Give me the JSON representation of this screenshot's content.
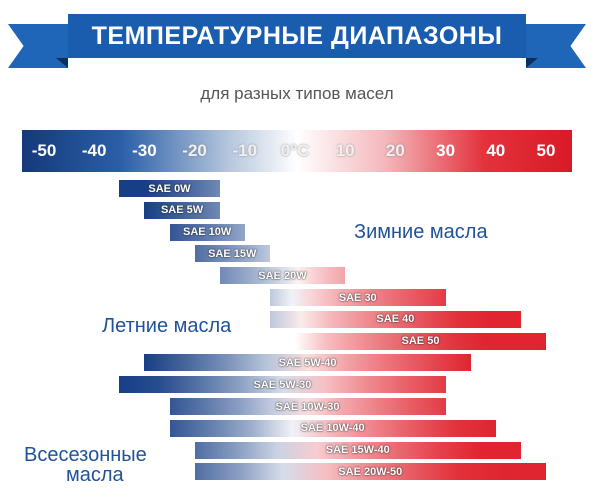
{
  "header": {
    "title": "ТЕМПЕРАТУРНЫЕ ДИАПАЗОНЫ",
    "subtitle": "для разных типов масел"
  },
  "colors": {
    "cold": "#173f86",
    "hot": "#e02530",
    "ribbon": "#1a5dae",
    "group_text": "#1f5297"
  },
  "scale": {
    "ticks": [
      "-50",
      "-40",
      "-30",
      "-20",
      "-10",
      "0°C",
      "10",
      "20",
      "30",
      "40",
      "50"
    ],
    "range": [
      -50,
      50
    ]
  },
  "groups": {
    "winter": "Зимние масла",
    "summer": "Летние масла",
    "allseason_line1": "Всесезонные",
    "allseason_line2": "масла"
  },
  "chart_data": {
    "type": "bar",
    "orientation": "horizontal-range",
    "unit": "°C",
    "xlim": [
      -50,
      50
    ],
    "oils": [
      {
        "name": "SAE 0W",
        "min": -35,
        "max": -15
      },
      {
        "name": "SAE 5W",
        "min": -30,
        "max": -15
      },
      {
        "name": "SAE 10W",
        "min": -25,
        "max": -10
      },
      {
        "name": "SAE 15W",
        "min": -20,
        "max": -5
      },
      {
        "name": "SAE 20W",
        "min": -15,
        "max": 10
      },
      {
        "name": "SAE 30",
        "min": -5,
        "max": 30
      },
      {
        "name": "SAE 40",
        "min": -5,
        "max": 45
      },
      {
        "name": "SAE 50",
        "min": 0,
        "max": 50
      },
      {
        "name": "SAE 5W-40",
        "min": -30,
        "max": 35
      },
      {
        "name": "SAE 5W-30",
        "min": -35,
        "max": 30
      },
      {
        "name": "SAE 10W-30",
        "min": -25,
        "max": 30
      },
      {
        "name": "SAE 10W-40",
        "min": -25,
        "max": 40
      },
      {
        "name": "SAE 15W-40",
        "min": -20,
        "max": 45
      },
      {
        "name": "SAE 20W-50",
        "min": -20,
        "max": 50
      }
    ]
  }
}
